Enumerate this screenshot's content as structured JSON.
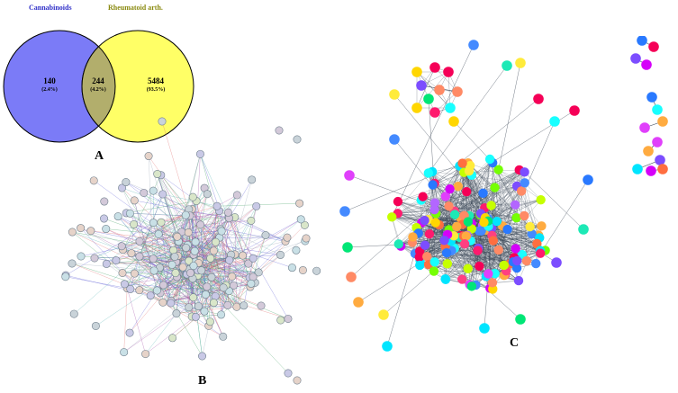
{
  "venn": {
    "left_set": "Cannabinoids",
    "right_set": "Rheumatoid arth.",
    "left_only": {
      "count": "140",
      "percent": "(2.4%)"
    },
    "intersection": {
      "count": "244",
      "percent": "(4.2%)"
    },
    "right_only": {
      "count": "5484",
      "percent": "(93.5%)"
    },
    "colors": {
      "left": "#7b7bf7",
      "right": "#ffff66",
      "overlap": "#b2ae6c",
      "left_title": "#3030c8",
      "right_title": "#8a8a10"
    }
  },
  "panels": {
    "a": "A",
    "b": "B",
    "c": "C"
  },
  "network_b": {
    "style": "STRING protein-protein interaction network",
    "node_fill": "#c9d3d9",
    "edge_colors": [
      "#5b5bd6",
      "#3f9e60",
      "#a24fa8",
      "#9aa7b8",
      "#e06a6a",
      "#54b3b3"
    ]
  },
  "network_c": {
    "style": "clustered network, nodes colored by cluster",
    "node_colors": [
      "#ff1a6e",
      "#00e5ff",
      "#b366ff",
      "#00e676",
      "#ff8a65",
      "#7c4dff",
      "#ffeb3b",
      "#2979ff",
      "#ff4081",
      "#18ffff",
      "#ffab40",
      "#d500f9",
      "#e040fb",
      "#76ff03",
      "#f50057",
      "#1de9b6",
      "#ffd600",
      "#ff6e40",
      "#448aff",
      "#c6ff00"
    ]
  }
}
